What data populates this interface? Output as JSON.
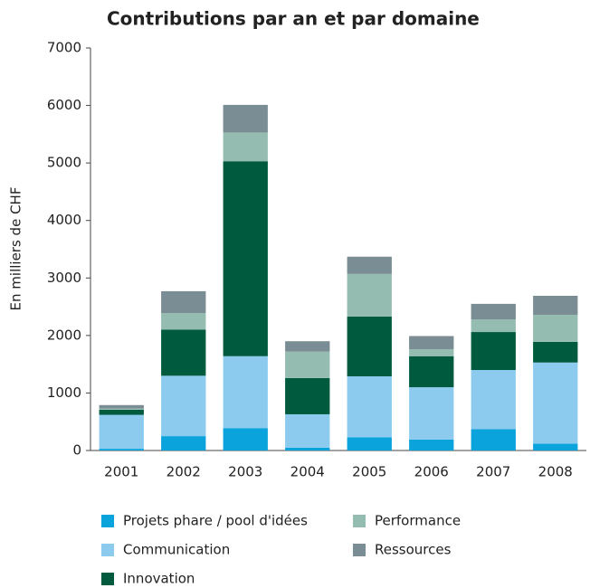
{
  "chart_data": {
    "type": "stacked_bar",
    "title": "Contributions par an et par domaine",
    "y_label": "En milliers de CHF",
    "categories": [
      "2001",
      "2002",
      "2003",
      "2004",
      "2005",
      "2006",
      "2007",
      "2008"
    ],
    "series": [
      {
        "name": "Projets phare / pool d'idées",
        "color": "#0aa3dc",
        "values": [
          30,
          250,
          390,
          50,
          230,
          190,
          370,
          120
        ]
      },
      {
        "name": "Communication",
        "color": "#8ccbee",
        "values": [
          590,
          1050,
          1250,
          580,
          1060,
          910,
          1030,
          1410
        ]
      },
      {
        "name": "Innovation",
        "color": "#005a3e",
        "values": [
          90,
          800,
          3390,
          630,
          1040,
          540,
          660,
          360
        ]
      },
      {
        "name": "Performance",
        "color": "#95bcb0",
        "values": [
          20,
          290,
          500,
          460,
          740,
          120,
          220,
          470
        ]
      },
      {
        "name": "Ressources",
        "color": "#7a8c94",
        "values": [
          60,
          380,
          480,
          180,
          300,
          230,
          270,
          330
        ]
      }
    ],
    "ylim": [
      0,
      7000
    ],
    "yticks": [
      0,
      1000,
      2000,
      3000,
      4000,
      5000,
      6000,
      7000
    ],
    "grid": false
  }
}
